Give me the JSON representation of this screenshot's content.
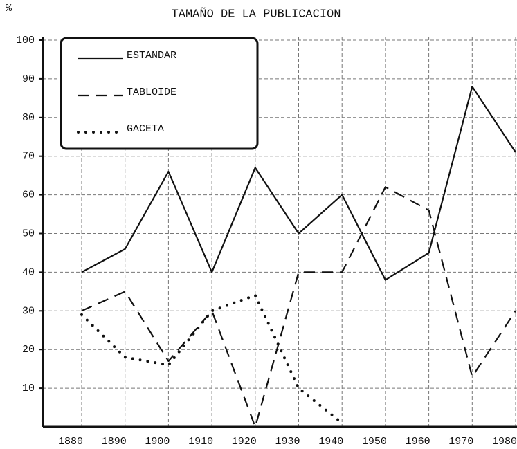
{
  "chart_data": {
    "type": "line",
    "title": "TAMAÑO DE LA PUBLICACION",
    "y_label": "%",
    "categories": [
      "1880",
      "1890",
      "1900",
      "1910",
      "1920",
      "1930",
      "1940",
      "1950",
      "1960",
      "1970",
      "1980"
    ],
    "series": [
      {
        "name": "ESTANDAR",
        "color": "#111111",
        "style": "solid",
        "values": [
          40,
          46,
          66,
          40,
          67,
          50,
          60,
          38,
          45,
          88,
          71
        ]
      },
      {
        "name": "TABLOIDE",
        "color": "#111111",
        "style": "dashed",
        "values": [
          30,
          35,
          17,
          30,
          0,
          40,
          40,
          62,
          56,
          13,
          30
        ]
      },
      {
        "name": "GACETA",
        "color": "#111111",
        "style": "dotted",
        "values": [
          29,
          18,
          16,
          30,
          34,
          10,
          1,
          null,
          null,
          null,
          null
        ]
      }
    ],
    "ylim": [
      0,
      100
    ],
    "yticks": [
      10,
      20,
      30,
      40,
      50,
      60,
      70,
      80,
      90,
      100
    ],
    "grid": true,
    "legend": "upper left"
  }
}
